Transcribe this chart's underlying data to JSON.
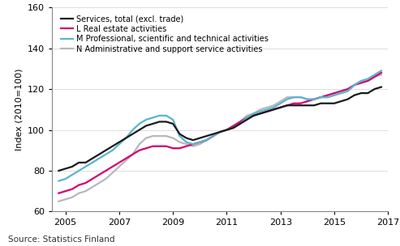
{
  "title": "",
  "ylabel": "Index (2010=100)",
  "source": "Source: Statistics Finland",
  "xlim": [
    2004.5,
    2017.0
  ],
  "ylim": [
    60,
    160
  ],
  "yticks": [
    60,
    80,
    100,
    120,
    140,
    160
  ],
  "xticks": [
    2005,
    2007,
    2009,
    2011,
    2013,
    2015,
    2017
  ],
  "series": {
    "services_total": {
      "label": "Services, total (excl. trade)",
      "color": "#1a1a1a",
      "linewidth": 1.6
    },
    "real_estate": {
      "label": "L Real estate activities",
      "color": "#d4006e",
      "linewidth": 1.6
    },
    "professional": {
      "label": "M Professional, scientific and technical activities",
      "color": "#5ab4cc",
      "linewidth": 1.6
    },
    "administrative": {
      "label": "N Administrative and support service activities",
      "color": "#b8b8b8",
      "linewidth": 1.6
    }
  },
  "services_total_x": [
    2004.75,
    2005.0,
    2005.25,
    2005.5,
    2005.75,
    2006.0,
    2006.25,
    2006.5,
    2006.75,
    2007.0,
    2007.25,
    2007.5,
    2007.75,
    2008.0,
    2008.25,
    2008.5,
    2008.75,
    2009.0,
    2009.25,
    2009.5,
    2009.75,
    2010.0,
    2010.25,
    2010.5,
    2010.75,
    2011.0,
    2011.25,
    2011.5,
    2011.75,
    2012.0,
    2012.25,
    2012.5,
    2012.75,
    2013.0,
    2013.25,
    2013.5,
    2013.75,
    2014.0,
    2014.25,
    2014.5,
    2014.75,
    2015.0,
    2015.25,
    2015.5,
    2015.75,
    2016.0,
    2016.25,
    2016.5,
    2016.75
  ],
  "services_total_y": [
    80,
    81,
    82,
    84,
    84,
    86,
    88,
    90,
    92,
    94,
    96,
    98,
    100,
    102,
    103,
    104,
    104,
    103,
    98,
    96,
    95,
    96,
    97,
    98,
    99,
    100,
    101,
    103,
    105,
    107,
    108,
    109,
    110,
    111,
    112,
    112,
    112,
    112,
    112,
    113,
    113,
    113,
    114,
    115,
    117,
    118,
    118,
    120,
    121
  ],
  "real_estate_x": [
    2004.75,
    2005.0,
    2005.25,
    2005.5,
    2005.75,
    2006.0,
    2006.25,
    2006.5,
    2006.75,
    2007.0,
    2007.25,
    2007.5,
    2007.75,
    2008.0,
    2008.25,
    2008.5,
    2008.75,
    2009.0,
    2009.25,
    2009.5,
    2009.75,
    2010.0,
    2010.25,
    2010.5,
    2010.75,
    2011.0,
    2011.25,
    2011.5,
    2011.75,
    2012.0,
    2012.25,
    2012.5,
    2012.75,
    2013.0,
    2013.25,
    2013.5,
    2013.75,
    2014.0,
    2014.25,
    2014.5,
    2014.75,
    2015.0,
    2015.25,
    2015.5,
    2015.75,
    2016.0,
    2016.25,
    2016.5,
    2016.75
  ],
  "real_estate_y": [
    69,
    70,
    71,
    73,
    74,
    76,
    78,
    80,
    82,
    84,
    86,
    88,
    90,
    91,
    92,
    92,
    92,
    91,
    91,
    92,
    93,
    94,
    95,
    97,
    99,
    100,
    102,
    104,
    106,
    107,
    108,
    109,
    110,
    111,
    112,
    113,
    113,
    114,
    115,
    116,
    117,
    118,
    119,
    120,
    122,
    123,
    124,
    126,
    128
  ],
  "professional_x": [
    2004.75,
    2005.0,
    2005.25,
    2005.5,
    2005.75,
    2006.0,
    2006.25,
    2006.5,
    2006.75,
    2007.0,
    2007.25,
    2007.5,
    2007.75,
    2008.0,
    2008.25,
    2008.5,
    2008.75,
    2009.0,
    2009.25,
    2009.5,
    2009.75,
    2010.0,
    2010.25,
    2010.5,
    2010.75,
    2011.0,
    2011.25,
    2011.5,
    2011.75,
    2012.0,
    2012.25,
    2012.5,
    2012.75,
    2013.0,
    2013.25,
    2013.5,
    2013.75,
    2014.0,
    2014.25,
    2014.5,
    2014.75,
    2015.0,
    2015.25,
    2015.5,
    2015.75,
    2016.0,
    2016.25,
    2016.5,
    2016.75
  ],
  "professional_y": [
    75,
    76,
    78,
    80,
    82,
    84,
    86,
    88,
    90,
    93,
    96,
    100,
    103,
    105,
    106,
    107,
    107,
    105,
    97,
    94,
    93,
    94,
    95,
    97,
    99,
    100,
    101,
    103,
    106,
    108,
    109,
    110,
    111,
    113,
    115,
    116,
    116,
    115,
    115,
    116,
    116,
    117,
    118,
    119,
    122,
    124,
    125,
    127,
    129
  ],
  "administrative_x": [
    2004.75,
    2005.0,
    2005.25,
    2005.5,
    2005.75,
    2006.0,
    2006.25,
    2006.5,
    2006.75,
    2007.0,
    2007.25,
    2007.5,
    2007.75,
    2008.0,
    2008.25,
    2008.5,
    2008.75,
    2009.0,
    2009.25,
    2009.5,
    2009.75,
    2010.0,
    2010.25,
    2010.5,
    2010.75,
    2011.0,
    2011.25,
    2011.5,
    2011.75,
    2012.0,
    2012.25,
    2012.5,
    2012.75,
    2013.0,
    2013.25,
    2013.5,
    2013.75,
    2014.0,
    2014.25,
    2014.5,
    2014.75,
    2015.0,
    2015.25,
    2015.5,
    2015.75,
    2016.0,
    2016.25,
    2016.5,
    2016.75
  ],
  "administrative_y": [
    65,
    66,
    67,
    69,
    70,
    72,
    74,
    76,
    79,
    82,
    85,
    88,
    93,
    96,
    97,
    97,
    97,
    96,
    94,
    93,
    92,
    93,
    95,
    97,
    99,
    100,
    102,
    104,
    107,
    108,
    110,
    111,
    112,
    114,
    116,
    116,
    116,
    115,
    115,
    116,
    116,
    117,
    118,
    119,
    122,
    124,
    124,
    126,
    127
  ],
  "legend_fontsize": 7.0,
  "axis_fontsize": 8,
  "tick_fontsize": 8
}
